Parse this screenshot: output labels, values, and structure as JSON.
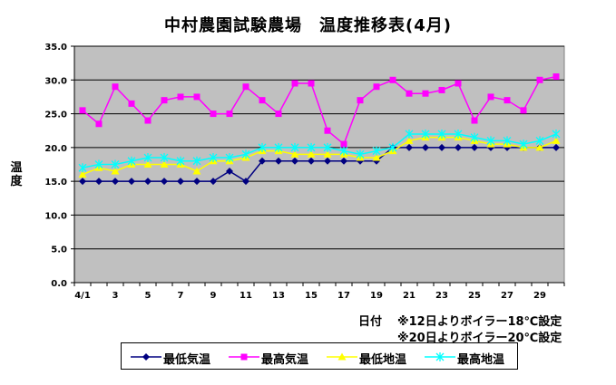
{
  "chart_data": {
    "type": "line",
    "title": "中村農園試験農場　温度推移表(4月)",
    "ylabel_chars": [
      "温",
      "度"
    ],
    "xlabel": "日付",
    "notes": [
      "※12日よりボイラー18℃設定",
      "※20日よりボイラー20℃設定"
    ],
    "ylim": [
      0,
      35
    ],
    "yticks": [
      "0.0",
      "5.0",
      "10.0",
      "15.0",
      "20.0",
      "25.0",
      "30.0",
      "35.0"
    ],
    "ytick_values": [
      0,
      5,
      10,
      15,
      20,
      25,
      30,
      35
    ],
    "x": [
      1,
      2,
      3,
      4,
      5,
      6,
      7,
      8,
      9,
      10,
      11,
      12,
      13,
      14,
      15,
      16,
      17,
      18,
      19,
      20,
      21,
      22,
      23,
      24,
      25,
      26,
      27,
      28,
      29,
      30
    ],
    "xtick_labels": [
      "4/1",
      "3",
      "5",
      "7",
      "9",
      "11",
      "13",
      "15",
      "17",
      "19",
      "21",
      "23",
      "25",
      "27",
      "29"
    ],
    "xtick_days": [
      1,
      3,
      5,
      7,
      9,
      11,
      13,
      15,
      17,
      19,
      21,
      23,
      25,
      27,
      29
    ],
    "grid": true,
    "plot_background": "#c0c0c0",
    "series": [
      {
        "name": "最低気温",
        "color": "#000080",
        "marker": "diamond",
        "values": [
          15,
          15,
          15,
          15,
          15,
          15,
          15,
          15,
          15,
          16.5,
          15,
          18,
          18,
          18,
          18,
          18,
          18,
          18,
          18,
          20,
          20,
          20,
          20,
          20,
          20,
          20,
          20,
          20,
          20,
          20
        ]
      },
      {
        "name": "最高気温",
        "color": "#ff00ff",
        "marker": "square",
        "values": [
          25.5,
          23.5,
          29,
          26.5,
          24,
          27,
          27.5,
          27.5,
          25,
          25,
          29,
          27,
          25,
          29.5,
          29.5,
          22.5,
          20.5,
          27,
          29,
          30,
          28,
          28,
          28.5,
          29.5,
          24,
          27.5,
          27,
          25.5,
          30,
          30.5
        ]
      },
      {
        "name": "最低地温",
        "color": "#ffff00",
        "marker": "triangle",
        "values": [
          16,
          17,
          16.5,
          17.5,
          17.5,
          17.5,
          17.5,
          16.5,
          18,
          18,
          18.5,
          19.5,
          19.5,
          19,
          19,
          19,
          19,
          18.5,
          18.5,
          19.5,
          21,
          21.5,
          21.5,
          21.5,
          21,
          20.5,
          20.5,
          20,
          20,
          21
        ]
      },
      {
        "name": "最高地温",
        "color": "#00ffff",
        "marker": "star",
        "values": [
          17,
          17.5,
          17.5,
          18,
          18.5,
          18.5,
          18,
          18,
          18.5,
          18.5,
          19,
          20,
          20,
          20,
          20,
          20,
          19.5,
          19,
          19.5,
          20,
          22,
          22,
          22,
          22,
          21.5,
          21,
          21,
          20.5,
          21,
          22
        ]
      }
    ]
  }
}
